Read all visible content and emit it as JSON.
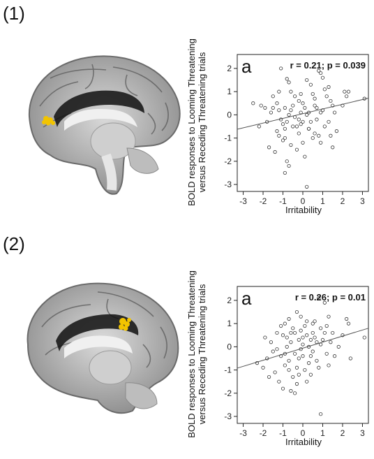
{
  "panels": [
    {
      "label": "(1)"
    },
    {
      "label": "(2)"
    }
  ],
  "chart_data": [
    {
      "type": "scatter",
      "panel": "(1)",
      "corner_letter": "a",
      "stats_text": "r = 0.21; p = 0.039",
      "xlabel": "Irritability",
      "ylabel_line1": "BOLD responses to Looming Threatening",
      "ylabel_line2": "versus Receding Threatening trials",
      "xlim": [
        -3.3,
        3.3
      ],
      "ylim": [
        -3.3,
        2.6
      ],
      "xticks": [
        -3,
        -2,
        -1,
        0,
        1,
        2,
        3
      ],
      "yticks": [
        -3,
        -2,
        -1,
        0,
        1,
        2
      ],
      "fit_line": {
        "x": [
          -3.3,
          3.3
        ],
        "y": [
          -0.62,
          0.72
        ]
      },
      "points": [
        [
          -1.1,
          2.0
        ],
        [
          -0.8,
          1.55
        ],
        [
          -0.7,
          1.4
        ],
        [
          -1.2,
          1.0
        ],
        [
          -2.1,
          0.4
        ],
        [
          -1.9,
          0.3
        ],
        [
          -1.6,
          0.1
        ],
        [
          -1.5,
          0.3
        ],
        [
          -1.3,
          0.5
        ],
        [
          -1.2,
          0.2
        ],
        [
          -1.1,
          -0.2
        ],
        [
          -1.0,
          -0.4
        ],
        [
          -0.9,
          -0.6
        ],
        [
          -0.8,
          -0.3
        ],
        [
          -0.7,
          0.0
        ],
        [
          -0.6,
          0.2
        ],
        [
          -0.5,
          0.4
        ],
        [
          -0.4,
          -0.1
        ],
        [
          -0.3,
          -0.5
        ],
        [
          -0.2,
          0.6
        ],
        [
          -0.1,
          0.1
        ],
        [
          0.0,
          -0.3
        ],
        [
          0.1,
          0.3
        ],
        [
          0.2,
          0.0
        ],
        [
          0.3,
          -0.6
        ],
        [
          0.4,
          1.3
        ],
        [
          0.5,
          0.9
        ],
        [
          0.6,
          0.4
        ],
        [
          0.7,
          -0.2
        ],
        [
          0.8,
          1.9
        ],
        [
          0.9,
          1.8
        ],
        [
          1.0,
          0.2
        ],
        [
          1.1,
          -0.5
        ],
        [
          1.2,
          0.8
        ],
        [
          1.3,
          1.2
        ],
        [
          1.4,
          0.6
        ],
        [
          1.5,
          -1.4
        ],
        [
          1.6,
          0.1
        ],
        [
          2.0,
          0.4
        ],
        [
          2.1,
          1.0
        ],
        [
          2.3,
          1.0
        ],
        [
          3.1,
          0.7
        ],
        [
          -1.7,
          -1.4
        ],
        [
          -1.2,
          -0.9
        ],
        [
          -0.9,
          -1.0
        ],
        [
          -0.8,
          -2.0
        ],
        [
          -0.7,
          -2.2
        ],
        [
          -0.9,
          -2.5
        ],
        [
          -0.3,
          -1.5
        ],
        [
          0.1,
          -1.8
        ],
        [
          0.3,
          -0.6
        ],
        [
          -0.2,
          -0.8
        ],
        [
          -0.5,
          -0.5
        ],
        [
          0.0,
          -1.2
        ],
        [
          0.5,
          -1.0
        ],
        [
          0.8,
          -0.9
        ],
        [
          0.9,
          -1.2
        ],
        [
          1.3,
          -0.3
        ],
        [
          0.2,
          -3.1
        ],
        [
          -1.4,
          -1.6
        ],
        [
          -1.0,
          -1.1
        ],
        [
          0.4,
          -0.3
        ],
        [
          0.6,
          0.7
        ],
        [
          1.0,
          1.6
        ],
        [
          1.1,
          1.1
        ],
        [
          0.2,
          1.5
        ],
        [
          -0.1,
          0.9
        ],
        [
          -0.6,
          1.0
        ],
        [
          -1.5,
          0.8
        ],
        [
          -2.5,
          0.5
        ],
        [
          0.7,
          0.3
        ],
        [
          0.0,
          0.5
        ],
        [
          -0.4,
          0.8
        ],
        [
          -1.8,
          -0.3
        ],
        [
          -2.2,
          -0.5
        ],
        [
          -1.3,
          -0.7
        ],
        [
          1.7,
          -0.7
        ],
        [
          0.3,
          0.1
        ],
        [
          -0.2,
          -0.2
        ],
        [
          0.9,
          0.1
        ],
        [
          1.5,
          0.4
        ],
        [
          2.2,
          0.8
        ],
        [
          -0.6,
          -1.3
        ],
        [
          -0.1,
          -0.4
        ],
        [
          0.6,
          -0.8
        ],
        [
          -0.9,
          0.3
        ],
        [
          1.4,
          -0.9
        ]
      ]
    },
    {
      "type": "scatter",
      "panel": "(2)",
      "corner_letter": "a",
      "stats_text": "r = 0.26; p = 0.01",
      "xlabel": "Irritability",
      "ylabel_line1": "BOLD responses to Looming Threatening",
      "ylabel_line2": "versus Receding Threatening trials",
      "xlim": [
        -3.3,
        3.3
      ],
      "ylim": [
        -3.3,
        2.6
      ],
      "xticks": [
        -3,
        -2,
        -1,
        0,
        1,
        2,
        3
      ],
      "yticks": [
        -3,
        -2,
        -1,
        0,
        1,
        2
      ],
      "fit_line": {
        "x": [
          -3.3,
          3.3
        ],
        "y": [
          -0.92,
          0.8
        ]
      },
      "points": [
        [
          0.8,
          2.1
        ],
        [
          1.1,
          1.9
        ],
        [
          1.3,
          1.3
        ],
        [
          -0.3,
          1.5
        ],
        [
          -0.1,
          1.3
        ],
        [
          -0.7,
          1.2
        ],
        [
          -0.9,
          1.0
        ],
        [
          2.2,
          1.2
        ],
        [
          2.3,
          1.0
        ],
        [
          0.2,
          1.1
        ],
        [
          0.5,
          1.0
        ],
        [
          0.9,
          0.8
        ],
        [
          1.1,
          0.6
        ],
        [
          -1.0,
          0.5
        ],
        [
          -0.8,
          0.4
        ],
        [
          -0.6,
          0.2
        ],
        [
          -0.4,
          0.6
        ],
        [
          -0.2,
          0.3
        ],
        [
          0.0,
          0.1
        ],
        [
          0.2,
          0.5
        ],
        [
          0.4,
          0.3
        ],
        [
          0.6,
          0.4
        ],
        [
          1.4,
          0.2
        ],
        [
          2.0,
          0.5
        ],
        [
          3.1,
          0.4
        ],
        [
          -2.3,
          -0.7
        ],
        [
          -1.8,
          -0.5
        ],
        [
          -1.5,
          -0.2
        ],
        [
          -1.3,
          -0.1
        ],
        [
          -1.1,
          -0.4
        ],
        [
          -0.9,
          -0.8
        ],
        [
          -0.7,
          -1.0
        ],
        [
          -0.5,
          -1.3
        ],
        [
          -0.3,
          -1.6
        ],
        [
          0.0,
          -0.4
        ],
        [
          0.3,
          -0.7
        ],
        [
          0.5,
          -0.2
        ],
        [
          0.7,
          -0.6
        ],
        [
          0.9,
          0.1
        ],
        [
          1.2,
          -0.3
        ],
        [
          -1.2,
          -1.5
        ],
        [
          -1.0,
          -1.8
        ],
        [
          -0.6,
          -1.9
        ],
        [
          -0.4,
          -2.0
        ],
        [
          0.1,
          -1.0
        ],
        [
          0.4,
          -1.2
        ],
        [
          -0.2,
          -0.5
        ],
        [
          -0.8,
          0.0
        ],
        [
          -1.6,
          0.2
        ],
        [
          -1.9,
          0.4
        ],
        [
          1.6,
          -0.4
        ],
        [
          2.4,
          -0.5
        ],
        [
          0.9,
          -2.9
        ],
        [
          -0.1,
          0.7
        ],
        [
          0.1,
          0.9
        ],
        [
          0.6,
          1.1
        ],
        [
          -0.5,
          0.8
        ],
        [
          -1.4,
          -1.1
        ],
        [
          -1.7,
          -1.3
        ],
        [
          0.3,
          0.0
        ],
        [
          0.8,
          -0.9
        ],
        [
          1.5,
          0.6
        ],
        [
          -0.3,
          -0.9
        ],
        [
          -0.9,
          -0.3
        ],
        [
          0.2,
          -1.5
        ],
        [
          -0.6,
          0.6
        ],
        [
          1.0,
          0.3
        ],
        [
          1.8,
          0.0
        ],
        [
          -2.0,
          -0.9
        ],
        [
          -0.1,
          -0.1
        ],
        [
          0.5,
          0.6
        ],
        [
          -1.1,
          0.9
        ],
        [
          0.7,
          0.2
        ],
        [
          1.3,
          -0.8
        ],
        [
          -0.2,
          -1.2
        ],
        [
          0.0,
          0.4
        ],
        [
          -0.7,
          -0.6
        ],
        [
          0.4,
          -0.4
        ],
        [
          1.2,
          0.9
        ],
        [
          -1.3,
          0.6
        ],
        [
          -0.4,
          -0.3
        ]
      ]
    }
  ]
}
